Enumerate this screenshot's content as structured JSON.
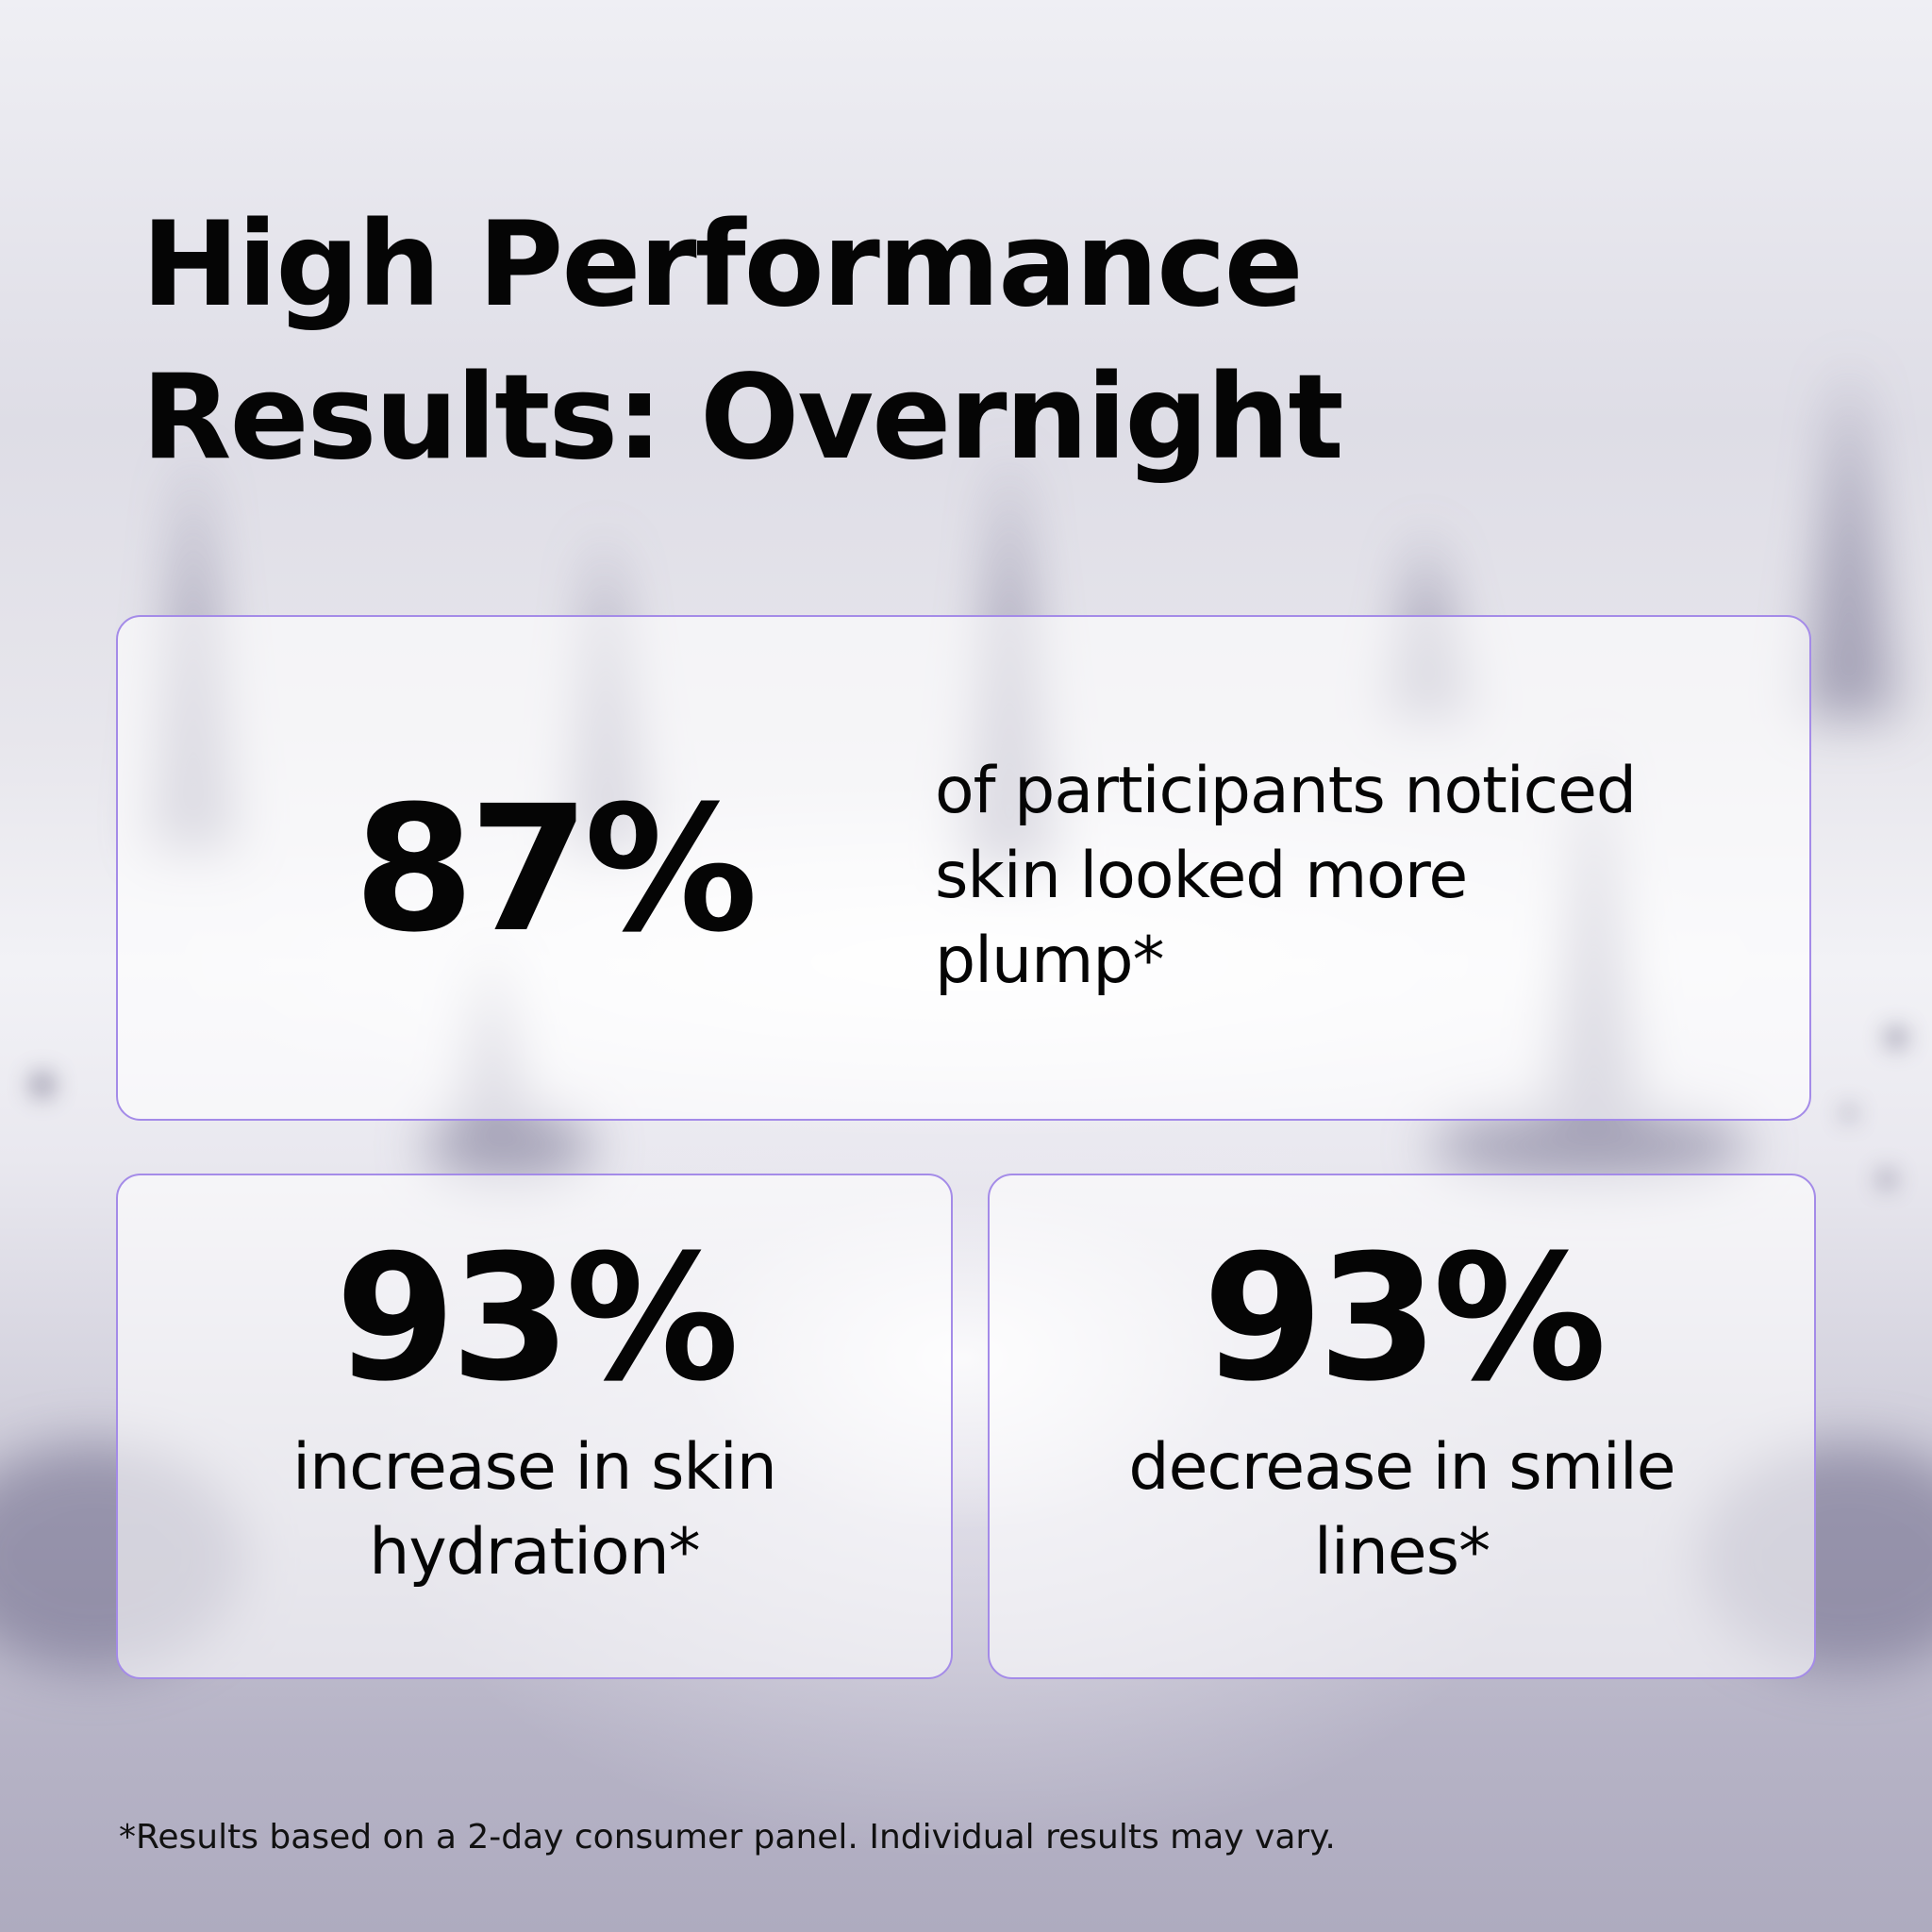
{
  "headline": {
    "line1": "High Performance",
    "line2": "Results: Overnight"
  },
  "stats": [
    {
      "value": "87%",
      "description_lines": [
        "of participants noticed",
        "skin looked more",
        "plump*"
      ]
    },
    {
      "value": "93%",
      "description_lines": [
        "increase in skin",
        "hydration*"
      ]
    },
    {
      "value": "93%",
      "description_lines": [
        "decrease in smile",
        "lines*"
      ]
    }
  ],
  "disclaimer": "*Results based on a 2-day consumer panel. Individual results may vary.",
  "colors": {
    "card_border": "#a48be8",
    "text": "#050505",
    "background": "#e9e8ef"
  }
}
